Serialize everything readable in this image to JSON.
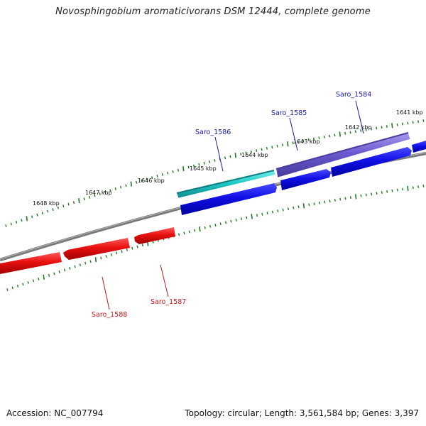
{
  "title": "Novosphingobium aromaticivorans DSM 12444, complete genome",
  "footer": {
    "accession": "Accession: NC_007794",
    "summary": "Topology: circular; Length: 3,561,584 bp; Genes: 3,397"
  },
  "scale_labels": [
    "1641 kbp",
    "1642 kbp",
    "1643 kbp",
    "1644 kbp",
    "1645 kbp",
    "1646 kbp",
    "1647 kbp",
    "1648 kbp"
  ],
  "genes": [
    {
      "name": "Saro_1584",
      "color": "#1a1aa8"
    },
    {
      "name": "Saro_1585",
      "color": "#1a1aa8"
    },
    {
      "name": "Saro_1586",
      "color": "#1a1aa8"
    },
    {
      "name": "Saro_1587",
      "color": "#c81818"
    },
    {
      "name": "Saro_1588",
      "color": "#c81818"
    }
  ],
  "colors": {
    "backbone": "#777777",
    "tick": "#1e7a1e",
    "forward_cds": "#1010e0",
    "reverse_cds": "#e01010",
    "highlight_cyan": "#22c8c8",
    "highlight_purple": "#7060c8"
  }
}
